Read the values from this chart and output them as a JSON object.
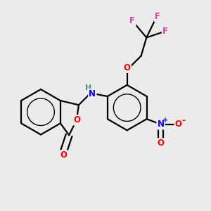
{
  "background_color": "#ebebeb",
  "bond_color": "#000000",
  "atom_colors": {
    "O": "#ff0000",
    "N": "#0000ff",
    "H": "#4a9090",
    "F": "#cc44aa",
    "plus": "#0000ff",
    "minus": "#ff0000"
  },
  "figsize": [
    3.0,
    3.0
  ],
  "dpi": 100,
  "bond_lw": 1.6,
  "ring_inner_scale": 0.6
}
